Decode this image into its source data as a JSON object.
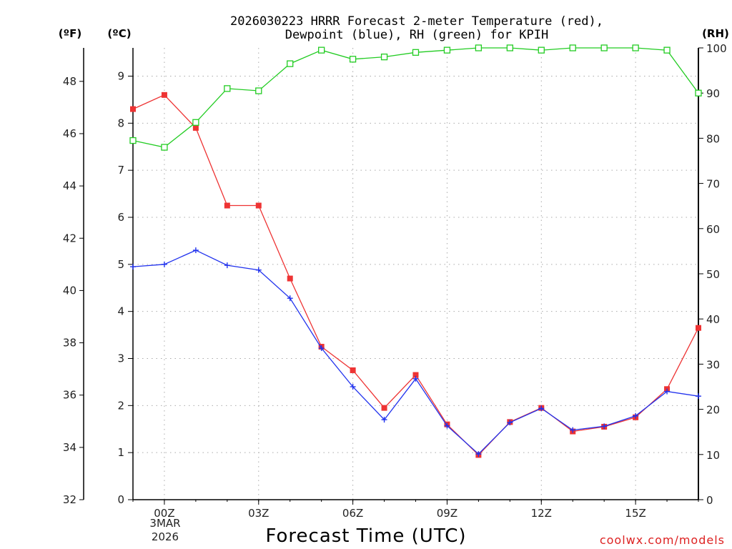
{
  "chart_data": {
    "type": "line",
    "title_line1": "2026030223 HRRR Forecast 2-meter Temperature (red),",
    "title_line2": "Dewpoint (blue), RH (green) for KPIH",
    "xlabel": "Forecast Time (UTC)",
    "unit_f": "(ºF)",
    "unit_c": "(ºC)",
    "unit_rh": "(RH)",
    "date_line1": "3MAR",
    "date_line2": "2026",
    "watermark": "coolwx.com/models",
    "x_hours": [
      -1,
      0,
      1,
      2,
      3,
      4,
      5,
      6,
      7,
      8,
      9,
      10,
      11,
      12,
      13,
      14,
      15,
      16,
      17
    ],
    "x_range": [
      -1,
      17
    ],
    "x_ticks": [
      {
        "hour": 0,
        "label": "00Z"
      },
      {
        "hour": 3,
        "label": "03Z"
      },
      {
        "hour": 6,
        "label": "06Z"
      },
      {
        "hour": 9,
        "label": "09Z"
      },
      {
        "hour": 12,
        "label": "12Z"
      },
      {
        "hour": 15,
        "label": "15Z"
      }
    ],
    "ylim_c": [
      0,
      9.6
    ],
    "y_ticks_c": [
      "0",
      "1",
      "2",
      "3",
      "4",
      "5",
      "6",
      "7",
      "8",
      "9"
    ],
    "y_ticks_f": [
      "32",
      "34",
      "36",
      "38",
      "40",
      "42",
      "44",
      "46",
      "48"
    ],
    "ylim_rh": [
      0,
      100
    ],
    "y_ticks_rh": [
      "0",
      "10",
      "20",
      "30",
      "40",
      "50",
      "60",
      "70",
      "80",
      "90",
      "100"
    ],
    "series": [
      {
        "name": "Temperature",
        "unit": "C",
        "color": "#ee3333",
        "marker": "filled-square",
        "values": [
          8.3,
          8.6,
          7.9,
          6.25,
          6.25,
          4.7,
          3.25,
          2.75,
          1.95,
          2.65,
          1.6,
          0.95,
          1.65,
          1.95,
          1.45,
          1.55,
          1.75,
          2.35,
          3.65
        ]
      },
      {
        "name": "Dewpoint",
        "unit": "C",
        "color": "#2233ee",
        "marker": "plus",
        "values": [
          4.95,
          5.0,
          5.3,
          4.98,
          4.88,
          4.28,
          3.22,
          2.4,
          1.7,
          2.57,
          1.57,
          0.97,
          1.64,
          1.94,
          1.48,
          1.56,
          1.78,
          2.3,
          2.2
        ]
      },
      {
        "name": "RH",
        "unit": "%",
        "color": "#22cc22",
        "marker": "open-square",
        "values": [
          79.5,
          78,
          83.5,
          91,
          90.5,
          96.5,
          99.5,
          97.5,
          98,
          99,
          99.5,
          100,
          100,
          99.5,
          100,
          100,
          100,
          99.5,
          90
        ]
      }
    ],
    "grid": true
  },
  "colors": {
    "temperature": "#ee3333",
    "dewpoint": "#2233ee",
    "rh": "#22cc22",
    "watermark": "#dd2222",
    "grid": "#aaaaaa"
  }
}
